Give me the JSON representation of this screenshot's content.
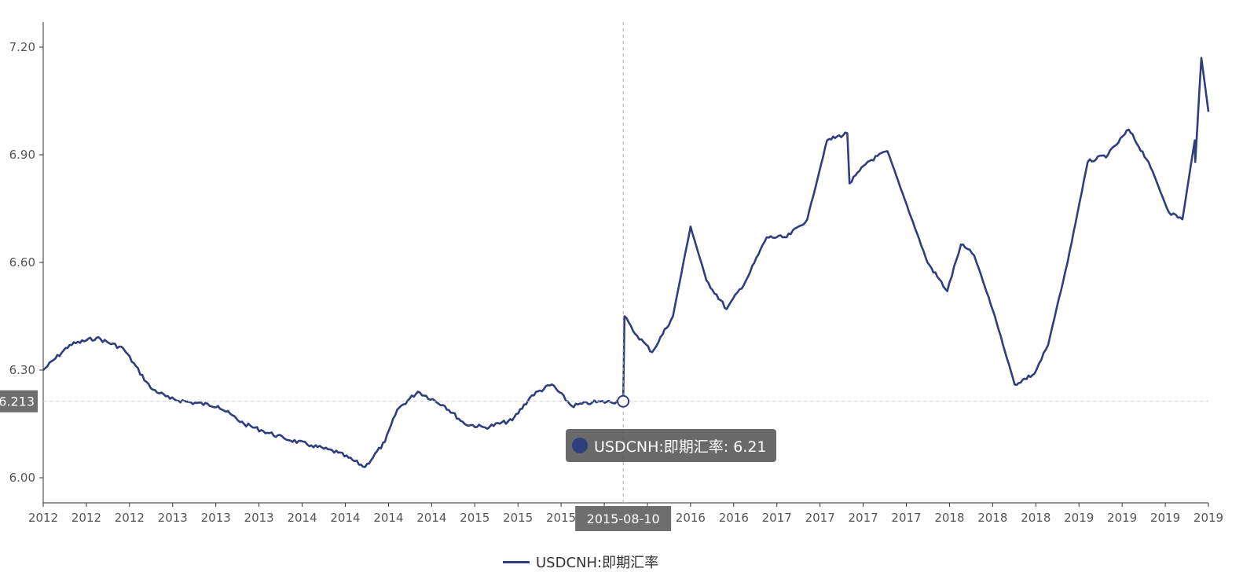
{
  "chart_data": {
    "type": "line",
    "title": "",
    "xlabel": "",
    "ylabel": "",
    "ylim": [
      5.93,
      7.27
    ],
    "y_ticks": [
      "6.00",
      "6.30",
      "6.60",
      "6.90",
      "7.20"
    ],
    "x_tick_labels": [
      "2012",
      "2012",
      "2012",
      "2013",
      "2013",
      "2013",
      "2014",
      "2014",
      "2014",
      "2014",
      "2015",
      "2015",
      "2015",
      "2015",
      "2016",
      "2016",
      "2016",
      "2017",
      "2017",
      "2017",
      "2017",
      "2018",
      "2018",
      "2018",
      "2019",
      "2019",
      "2019",
      "2019"
    ],
    "x_range": [
      "2012-01-01",
      "2019-03-31"
    ],
    "grid": false,
    "legend_position": "bottom-center",
    "series": [
      {
        "name": "USDCNH:即期汇率",
        "color": "#2f3f7e",
        "x": [
          "2012-01-01",
          "2012-03-01",
          "2012-05-01",
          "2012-07-01",
          "2012-09-01",
          "2012-10-15",
          "2012-12-01",
          "2013-02-01",
          "2013-04-01",
          "2013-05-15",
          "2013-07-01",
          "2013-09-01",
          "2013-11-01",
          "2014-01-01",
          "2014-02-15",
          "2014-03-15",
          "2014-05-01",
          "2014-07-01",
          "2014-08-15",
          "2014-10-01",
          "2014-12-01",
          "2015-01-15",
          "2015-03-01",
          "2015-04-15",
          "2015-06-01",
          "2015-08-10",
          "2015-08-13",
          "2015-09-01",
          "2015-10-15",
          "2015-12-01",
          "2016-01-10",
          "2016-02-15",
          "2016-04-01",
          "2016-05-15",
          "2016-07-01",
          "2016-08-15",
          "2016-10-01",
          "2016-11-15",
          "2016-12-31",
          "2017-01-05",
          "2017-02-15",
          "2017-04-01",
          "2017-05-15",
          "2017-07-01",
          "2017-08-15",
          "2017-09-15",
          "2017-10-15",
          "2017-12-01",
          "2018-01-15",
          "2018-03-01",
          "2018-04-01",
          "2018-05-15",
          "2018-06-30",
          "2018-08-15",
          "2018-10-01",
          "2018-11-15",
          "2018-12-31",
          "2019-01-31",
          "2019-02-28",
          "2019-03-01",
          "2019-03-15",
          "2019-03-31"
        ],
        "values": [
          6.3,
          6.37,
          6.39,
          6.36,
          6.25,
          6.22,
          6.21,
          6.2,
          6.15,
          6.13,
          6.11,
          6.09,
          6.07,
          6.03,
          6.1,
          6.19,
          6.24,
          6.2,
          6.15,
          6.14,
          6.16,
          6.23,
          6.26,
          6.2,
          6.21,
          6.213,
          6.45,
          6.41,
          6.35,
          6.45,
          6.7,
          6.55,
          6.47,
          6.55,
          6.67,
          6.67,
          6.72,
          6.94,
          6.96,
          6.82,
          6.88,
          6.91,
          6.76,
          6.6,
          6.52,
          6.65,
          6.62,
          6.45,
          6.26,
          6.29,
          6.37,
          6.6,
          6.88,
          6.9,
          6.97,
          6.88,
          6.74,
          6.72,
          6.94,
          6.88,
          7.17,
          7.02
        ]
      }
    ],
    "highlight": {
      "date": "2015-08-10",
      "value": 6.213,
      "y_axis_pointer_label": "6.213",
      "tooltip": "USDCNH:即期汇率: 6.21"
    }
  }
}
